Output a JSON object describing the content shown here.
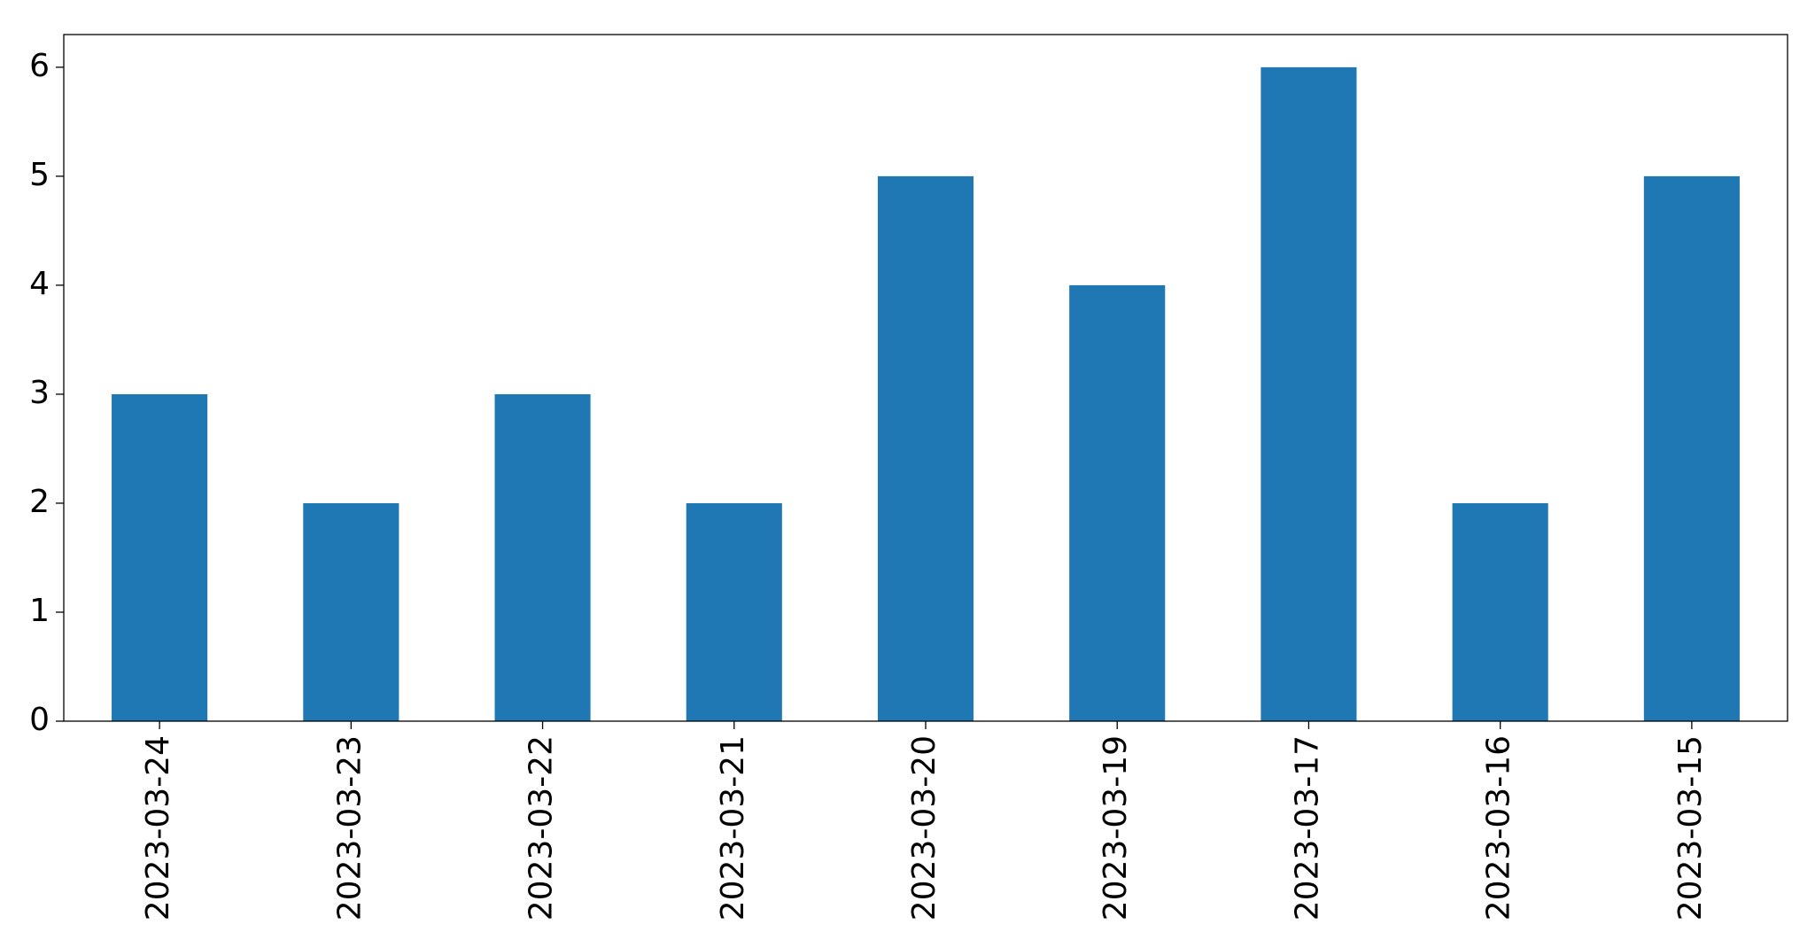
{
  "chart_data": {
    "type": "bar",
    "categories": [
      "2023-03-24",
      "2023-03-23",
      "2023-03-22",
      "2023-03-21",
      "2023-03-20",
      "2023-03-19",
      "2023-03-17",
      "2023-03-16",
      "2023-03-15"
    ],
    "values": [
      3,
      2,
      3,
      2,
      5,
      4,
      6,
      2,
      5
    ],
    "color": "#1f77b4",
    "ylim": [
      0,
      6.3
    ],
    "yticks": [
      0,
      1,
      2,
      3,
      4,
      5,
      6
    ],
    "grid": false
  }
}
